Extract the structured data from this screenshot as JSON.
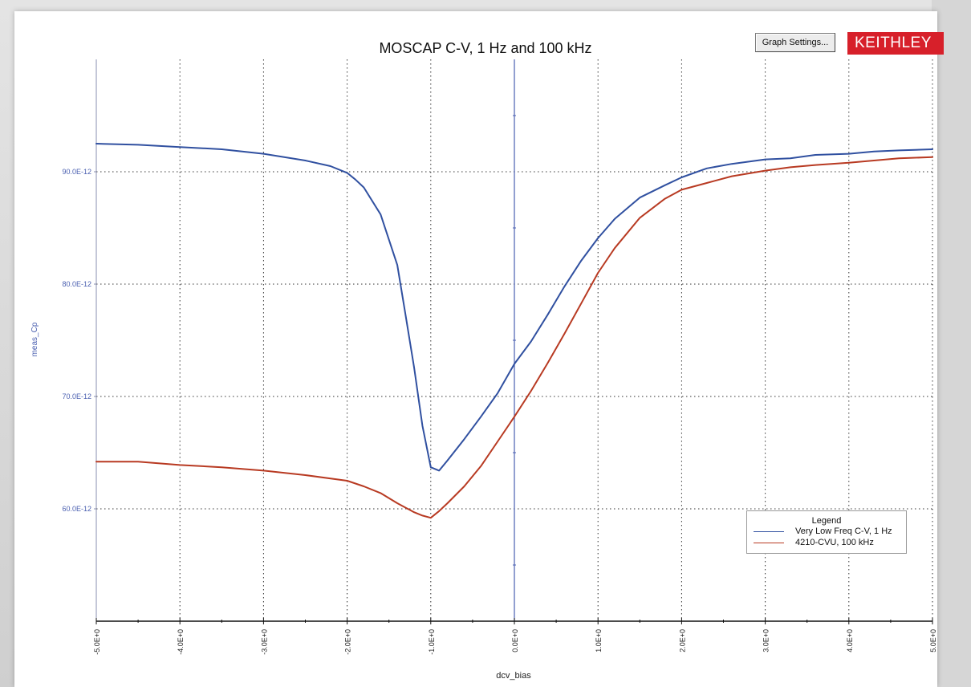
{
  "window": {
    "graph_settings_label": "Graph Settings...",
    "brand": "KEITHLEY"
  },
  "legend": {
    "title": "Legend"
  },
  "colors": {
    "axis": "#4a5fb0",
    "series_1hz": "#3050a0",
    "series_100khz": "#b83a22",
    "brand_red": "#d7202a",
    "tick_label": "#4a5fb0"
  },
  "chart_data": {
    "type": "line",
    "title": "MOSCAP C-V, 1 Hz and 100 kHz",
    "xlabel": "dcv_bias",
    "ylabel": "meas_Cp",
    "xlim": [
      -5.0,
      5.0
    ],
    "ylim": [
      50.0,
      100.0
    ],
    "y_unit": "pF (E-12)",
    "grid": true,
    "legend_position": "bottom-right",
    "x_ticks": [
      -5,
      -4,
      -3,
      -2,
      -1,
      0,
      1,
      2,
      3,
      4,
      5
    ],
    "x_tick_labels": [
      "-5.0E+0",
      "-4.0E+0",
      "-3.0E+0",
      "-2.0E+0",
      "-1.0E+0",
      "0.0E+0",
      "1.0E+0",
      "2.0E+0",
      "3.0E+0",
      "4.0E+0",
      "5.0E+0"
    ],
    "y_ticks": [
      60,
      70,
      80,
      90
    ],
    "y_tick_labels": [
      "60.0E-12",
      "70.0E-12",
      "80.0E-12",
      "90.0E-12"
    ],
    "series": [
      {
        "name": "Very Low Freq C-V, 1 Hz",
        "x": [
          -5.0,
          -4.5,
          -4.0,
          -3.5,
          -3.0,
          -2.5,
          -2.2,
          -2.0,
          -1.9,
          -1.8,
          -1.6,
          -1.4,
          -1.3,
          -1.2,
          -1.1,
          -1.0,
          -0.9,
          -0.8,
          -0.6,
          -0.4,
          -0.2,
          0.0,
          0.2,
          0.4,
          0.6,
          0.8,
          1.0,
          1.2,
          1.5,
          1.8,
          2.0,
          2.3,
          2.6,
          3.0,
          3.3,
          3.6,
          4.0,
          4.3,
          4.6,
          5.0
        ],
        "y": [
          92.5,
          92.4,
          92.2,
          92.0,
          91.6,
          91.0,
          90.5,
          89.9,
          89.3,
          88.6,
          86.2,
          81.7,
          77.2,
          72.6,
          67.4,
          63.7,
          63.4,
          64.3,
          66.2,
          68.2,
          70.3,
          72.9,
          74.9,
          77.3,
          79.8,
          82.1,
          84.1,
          85.8,
          87.7,
          88.8,
          89.5,
          90.3,
          90.7,
          91.1,
          91.2,
          91.5,
          91.6,
          91.8,
          91.9,
          92.0
        ]
      },
      {
        "name": "4210-CVU, 100 kHz",
        "x": [
          -5.0,
          -4.5,
          -4.0,
          -3.5,
          -3.0,
          -2.5,
          -2.0,
          -1.8,
          -1.6,
          -1.4,
          -1.2,
          -1.1,
          -1.0,
          -0.9,
          -0.8,
          -0.6,
          -0.4,
          -0.2,
          0.0,
          0.2,
          0.4,
          0.6,
          0.8,
          1.0,
          1.2,
          1.5,
          1.8,
          2.0,
          2.3,
          2.6,
          3.0,
          3.3,
          3.6,
          4.0,
          4.3,
          4.6,
          5.0
        ],
        "y": [
          64.2,
          64.2,
          63.9,
          63.7,
          63.4,
          63.0,
          62.5,
          62.0,
          61.4,
          60.5,
          59.7,
          59.4,
          59.2,
          59.8,
          60.5,
          62.0,
          63.8,
          66.0,
          68.2,
          70.5,
          73.0,
          75.6,
          78.3,
          81.0,
          83.2,
          85.9,
          87.6,
          88.4,
          89.0,
          89.6,
          90.1,
          90.4,
          90.6,
          90.8,
          91.0,
          91.2,
          91.3
        ]
      }
    ]
  }
}
